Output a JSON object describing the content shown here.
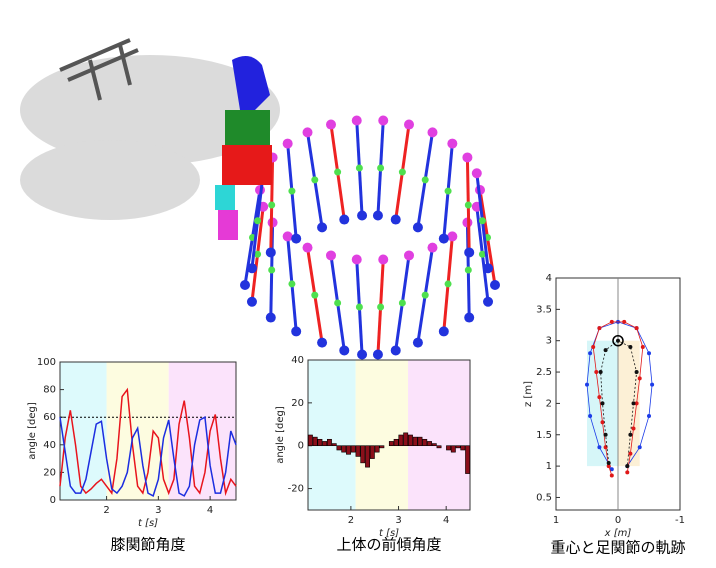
{
  "chart_data": [
    {
      "type": "line",
      "title": "膝関節角度",
      "xlabel": "t [s]",
      "ylabel": "angle [deg]",
      "xlim": [
        1.1,
        4.5
      ],
      "ylim": [
        0,
        100
      ],
      "xticks": [
        2,
        3,
        4
      ],
      "yticks": [
        0,
        20,
        40,
        60,
        80,
        100
      ],
      "hline": 60,
      "bands": [
        {
          "x": [
            1.1,
            2
          ],
          "color": "#ddfafc"
        },
        {
          "x": [
            2,
            3.2
          ],
          "color": "#fdfce0"
        },
        {
          "x": [
            3.2,
            4.5
          ],
          "color": "#fbe3fb"
        }
      ],
      "x": [
        1.1,
        1.2,
        1.3,
        1.4,
        1.5,
        1.6,
        1.7,
        1.8,
        1.9,
        2.0,
        2.1,
        2.2,
        2.3,
        2.4,
        2.5,
        2.6,
        2.7,
        2.8,
        2.9,
        3.0,
        3.1,
        3.2,
        3.3,
        3.4,
        3.5,
        3.6,
        3.7,
        3.8,
        3.9,
        4.0,
        4.1,
        4.2,
        4.3,
        4.4,
        4.5
      ],
      "series": [
        {
          "color": "#e8141c",
          "values": [
            10,
            45,
            65,
            40,
            10,
            5,
            8,
            12,
            15,
            10,
            5,
            30,
            75,
            80,
            40,
            10,
            5,
            20,
            50,
            45,
            15,
            5,
            15,
            55,
            72,
            45,
            10,
            5,
            20,
            50,
            62,
            30,
            5,
            15,
            10
          ]
        },
        {
          "color": "#1c2ee0",
          "values": [
            60,
            35,
            10,
            5,
            5,
            15,
            35,
            55,
            57,
            30,
            8,
            5,
            10,
            20,
            45,
            52,
            25,
            5,
            3,
            15,
            45,
            58,
            30,
            5,
            3,
            10,
            40,
            58,
            60,
            25,
            5,
            5,
            20,
            50,
            40
          ]
        }
      ]
    },
    {
      "type": "bar",
      "title": "上体の前傾角度",
      "xlabel": "t [s]",
      "ylabel": "angle [deg]",
      "xlim": [
        1.1,
        4.5
      ],
      "ylim": [
        -30,
        40
      ],
      "xticks": [
        2,
        3,
        4
      ],
      "yticks": [
        -20,
        0,
        20,
        40
      ],
      "bands": [
        {
          "x": [
            1.1,
            2.1
          ],
          "color": "#ddfafc"
        },
        {
          "x": [
            2.1,
            3.2
          ],
          "color": "#fdfce0"
        },
        {
          "x": [
            3.2,
            4.5
          ],
          "color": "#fbe3fb"
        }
      ],
      "color": "#8a0f1a",
      "x": [
        1.15,
        1.25,
        1.35,
        1.45,
        1.55,
        1.65,
        1.75,
        1.85,
        1.95,
        2.05,
        2.15,
        2.25,
        2.35,
        2.45,
        2.55,
        2.65,
        2.75,
        2.85,
        2.95,
        3.05,
        3.15,
        3.25,
        3.35,
        3.45,
        3.55,
        3.65,
        3.75,
        3.85,
        3.95,
        4.05,
        4.15,
        4.25,
        4.35,
        4.45
      ],
      "values": [
        5,
        4,
        3,
        2,
        3,
        1,
        -2,
        -3,
        -4,
        -3,
        -5,
        -8,
        -10,
        -6,
        -3,
        -1,
        0,
        2,
        3,
        5,
        6,
        5,
        4,
        4,
        3,
        2,
        1,
        -1,
        0,
        -2,
        -3,
        -1,
        -2,
        -13
      ]
    },
    {
      "type": "scatter",
      "title": "重心と足関節の軌跡",
      "xlabel": "x [m]",
      "ylabel": "z [m]",
      "xlim": [
        1,
        -1
      ],
      "ylim": [
        0.3,
        4
      ],
      "xticks": [
        1,
        0,
        -1
      ],
      "yticks": [
        0.5,
        1,
        1.5,
        2,
        2.5,
        3,
        3.5,
        4
      ],
      "vline": 0,
      "bands": [
        {
          "x": [
            0.5,
            0
          ],
          "y": [
            1,
            3
          ],
          "color": "#d6f6f8"
        },
        {
          "x": [
            0,
            -0.35
          ],
          "y": [
            1,
            3
          ],
          "color": "#fcf0d6"
        }
      ],
      "center": [
        0,
        3
      ],
      "series": [
        {
          "color": "#1c3ce8",
          "x": [
            0.1,
            0.3,
            0.45,
            0.5,
            0.45,
            0.3,
            0,
            -0.3,
            -0.5,
            -0.55,
            -0.5,
            -0.35,
            -0.15
          ],
          "values": [
            0.95,
            1.3,
            1.8,
            2.3,
            2.8,
            3.2,
            3.3,
            3.2,
            2.8,
            2.3,
            1.8,
            1.3,
            1.0
          ]
        },
        {
          "color": "#e01818",
          "x": [
            0.1,
            0.15,
            0.2,
            0.25,
            0.3,
            0.35,
            0.4,
            0.3,
            0.1,
            -0.1,
            -0.3,
            -0.4,
            -0.35,
            -0.3,
            -0.25,
            -0.2,
            -0.15
          ],
          "values": [
            0.85,
            1.0,
            1.3,
            1.7,
            2.1,
            2.5,
            2.9,
            3.2,
            3.3,
            3.3,
            3.2,
            2.9,
            2.4,
            2.0,
            1.6,
            1.2,
            0.9
          ]
        },
        {
          "color": "#111111",
          "x": [
            0.15,
            0.2,
            0.25,
            0.28,
            0.2,
            0,
            -0.2,
            -0.3,
            -0.25,
            -0.2,
            -0.15
          ],
          "values": [
            1.05,
            1.5,
            2.0,
            2.5,
            2.85,
            3.0,
            2.9,
            2.5,
            2.0,
            1.5,
            1.0
          ]
        }
      ]
    }
  ]
}
